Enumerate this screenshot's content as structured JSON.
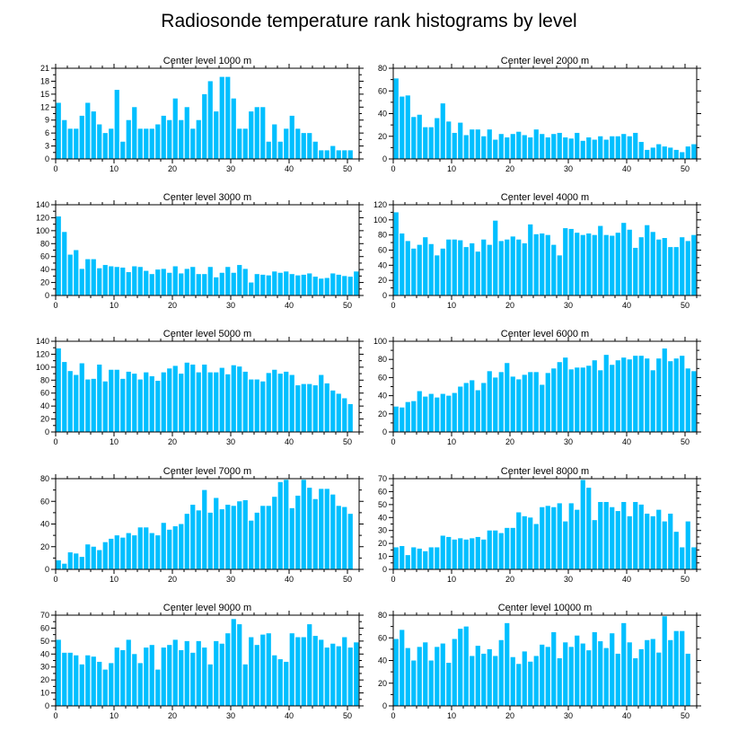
{
  "figure_title": "Radiosonde temperature rank histograms by level",
  "bar_color": "#00bfff",
  "chart_data": [
    {
      "type": "bar",
      "title": "Center level 1000 m",
      "xlim": [
        0,
        52
      ],
      "ylim": [
        0,
        21
      ],
      "xticks": [
        0,
        10,
        20,
        30,
        40,
        50
      ],
      "yticks": [
        0,
        3,
        6,
        9,
        12,
        15,
        18,
        21
      ],
      "values": [
        13,
        9,
        7,
        7,
        10,
        13,
        11,
        8,
        6,
        7,
        16,
        4,
        9,
        12,
        7,
        7,
        7,
        8,
        10,
        9,
        14,
        9,
        12,
        7,
        9,
        15,
        18,
        11,
        19,
        19,
        14,
        7,
        7,
        11,
        12,
        12,
        4,
        8,
        4,
        7,
        10,
        7,
        6,
        6,
        4,
        2,
        2,
        3,
        2,
        2,
        2,
        0
      ]
    },
    {
      "type": "bar",
      "title": "Center level 2000 m",
      "xlim": [
        0,
        52
      ],
      "ylim": [
        0,
        80
      ],
      "xticks": [
        0,
        10,
        20,
        30,
        40,
        50
      ],
      "yticks": [
        0,
        20,
        40,
        60,
        80
      ],
      "values": [
        71,
        55,
        56,
        37,
        39,
        28,
        28,
        36,
        49,
        33,
        23,
        32,
        21,
        26,
        26,
        20,
        26,
        17,
        22,
        19,
        22,
        24,
        21,
        19,
        26,
        22,
        19,
        22,
        23,
        19,
        18,
        23,
        16,
        19,
        17,
        20,
        17,
        20,
        20,
        22,
        20,
        23,
        15,
        8,
        10,
        13,
        11,
        10,
        8,
        6,
        11,
        13
      ]
    },
    {
      "type": "bar",
      "title": "Center level 3000 m",
      "xlim": [
        0,
        52
      ],
      "ylim": [
        0,
        140
      ],
      "xticks": [
        0,
        10,
        20,
        30,
        40,
        50
      ],
      "yticks": [
        0,
        20,
        40,
        60,
        80,
        100,
        120,
        140
      ],
      "values": [
        122,
        98,
        63,
        70,
        41,
        56,
        56,
        42,
        47,
        45,
        44,
        43,
        36,
        45,
        44,
        38,
        33,
        40,
        41,
        35,
        45,
        34,
        41,
        44,
        33,
        33,
        44,
        28,
        35,
        44,
        35,
        47,
        41,
        20,
        33,
        32,
        31,
        37,
        35,
        37,
        33,
        31,
        32,
        34,
        29,
        26,
        27,
        34,
        32,
        30,
        29,
        37
      ]
    },
    {
      "type": "bar",
      "title": "Center level 4000 m",
      "xlim": [
        0,
        52
      ],
      "ylim": [
        0,
        120
      ],
      "xticks": [
        0,
        10,
        20,
        30,
        40,
        50
      ],
      "yticks": [
        0,
        20,
        40,
        60,
        80,
        100,
        120
      ],
      "values": [
        110,
        82,
        72,
        62,
        67,
        77,
        68,
        53,
        62,
        74,
        74,
        73,
        64,
        69,
        58,
        74,
        67,
        99,
        72,
        74,
        78,
        74,
        69,
        94,
        81,
        82,
        80,
        67,
        53,
        89,
        88,
        83,
        80,
        82,
        80,
        92,
        80,
        79,
        83,
        96,
        87,
        63,
        77,
        93,
        84,
        74,
        76,
        64,
        64,
        77,
        72,
        80
      ]
    },
    {
      "type": "bar",
      "title": "Center level 5000 m",
      "xlim": [
        0,
        52
      ],
      "ylim": [
        0,
        140
      ],
      "xticks": [
        0,
        10,
        20,
        30,
        40,
        50
      ],
      "yticks": [
        0,
        20,
        40,
        60,
        80,
        100,
        120,
        140
      ],
      "values": [
        129,
        108,
        94,
        88,
        106,
        81,
        82,
        104,
        78,
        96,
        96,
        82,
        93,
        90,
        81,
        92,
        86,
        79,
        92,
        98,
        102,
        90,
        107,
        104,
        92,
        104,
        92,
        92,
        99,
        89,
        103,
        101,
        93,
        81,
        81,
        78,
        91,
        96,
        90,
        93,
        88,
        72,
        74,
        74,
        72,
        88,
        75,
        64,
        59,
        52,
        43,
        0
      ]
    },
    {
      "type": "bar",
      "title": "Center level 6000 m",
      "xlim": [
        0,
        52
      ],
      "ylim": [
        0,
        100
      ],
      "xticks": [
        0,
        10,
        20,
        30,
        40,
        50
      ],
      "yticks": [
        0,
        20,
        40,
        60,
        80,
        100
      ],
      "values": [
        28,
        27,
        33,
        34,
        45,
        39,
        42,
        38,
        42,
        40,
        43,
        50,
        54,
        57,
        46,
        54,
        67,
        60,
        66,
        76,
        61,
        58,
        63,
        66,
        66,
        52,
        65,
        70,
        77,
        82,
        69,
        71,
        71,
        73,
        79,
        68,
        85,
        74,
        79,
        82,
        80,
        84,
        84,
        81,
        68,
        81,
        92,
        78,
        81,
        84,
        70,
        67
      ]
    },
    {
      "type": "bar",
      "title": "Center level 7000 m",
      "xlim": [
        0,
        52
      ],
      "ylim": [
        0,
        80
      ],
      "xticks": [
        0,
        10,
        20,
        30,
        40,
        50
      ],
      "yticks": [
        0,
        20,
        40,
        60,
        80
      ],
      "values": [
        8,
        5,
        15,
        14,
        11,
        22,
        20,
        17,
        24,
        27,
        30,
        28,
        32,
        30,
        37,
        37,
        32,
        30,
        41,
        35,
        38,
        40,
        49,
        57,
        52,
        70,
        50,
        63,
        53,
        57,
        56,
        60,
        61,
        43,
        50,
        56,
        56,
        64,
        77,
        79,
        54,
        65,
        79,
        72,
        62,
        71,
        71,
        66,
        56,
        55,
        49,
        0
      ]
    },
    {
      "type": "bar",
      "title": "Center level 8000 m",
      "xlim": [
        0,
        52
      ],
      "ylim": [
        0,
        70
      ],
      "xticks": [
        0,
        10,
        20,
        30,
        40,
        50
      ],
      "yticks": [
        0,
        10,
        20,
        30,
        40,
        50,
        60,
        70
      ],
      "values": [
        17,
        18,
        11,
        17,
        16,
        14,
        17,
        17,
        26,
        25,
        23,
        24,
        23,
        24,
        25,
        23,
        30,
        30,
        28,
        32,
        32,
        44,
        41,
        40,
        35,
        48,
        49,
        48,
        51,
        37,
        51,
        46,
        69,
        63,
        38,
        52,
        52,
        48,
        45,
        52,
        41,
        52,
        50,
        43,
        41,
        46,
        37,
        43,
        29,
        17,
        37,
        17
      ]
    },
    {
      "type": "bar",
      "title": "Center level 9000 m",
      "xlim": [
        0,
        52
      ],
      "ylim": [
        0,
        70
      ],
      "xticks": [
        0,
        10,
        20,
        30,
        40,
        50
      ],
      "yticks": [
        0,
        10,
        20,
        30,
        40,
        50,
        60,
        70
      ],
      "values": [
        51,
        41,
        41,
        39,
        32,
        39,
        38,
        34,
        28,
        33,
        45,
        43,
        51,
        40,
        33,
        45,
        47,
        28,
        45,
        47,
        51,
        43,
        50,
        41,
        50,
        45,
        32,
        50,
        48,
        56,
        67,
        63,
        32,
        53,
        47,
        55,
        56,
        39,
        36,
        34,
        56,
        53,
        53,
        63,
        54,
        51,
        45,
        48,
        46,
        53,
        45,
        49
      ]
    },
    {
      "type": "bar",
      "title": "Center level 10000 m",
      "xlim": [
        0,
        52
      ],
      "ylim": [
        0,
        80
      ],
      "xticks": [
        0,
        10,
        20,
        30,
        40,
        50
      ],
      "yticks": [
        0,
        20,
        40,
        60,
        80
      ],
      "values": [
        59,
        67,
        51,
        40,
        52,
        56,
        40,
        52,
        55,
        38,
        59,
        68,
        70,
        44,
        53,
        46,
        50,
        44,
        58,
        73,
        43,
        37,
        48,
        39,
        44,
        54,
        52,
        65,
        42,
        56,
        52,
        62,
        55,
        49,
        65,
        57,
        51,
        64,
        46,
        73,
        56,
        42,
        50,
        58,
        59,
        47,
        79,
        58,
        66,
        66,
        46,
        0
      ]
    }
  ]
}
